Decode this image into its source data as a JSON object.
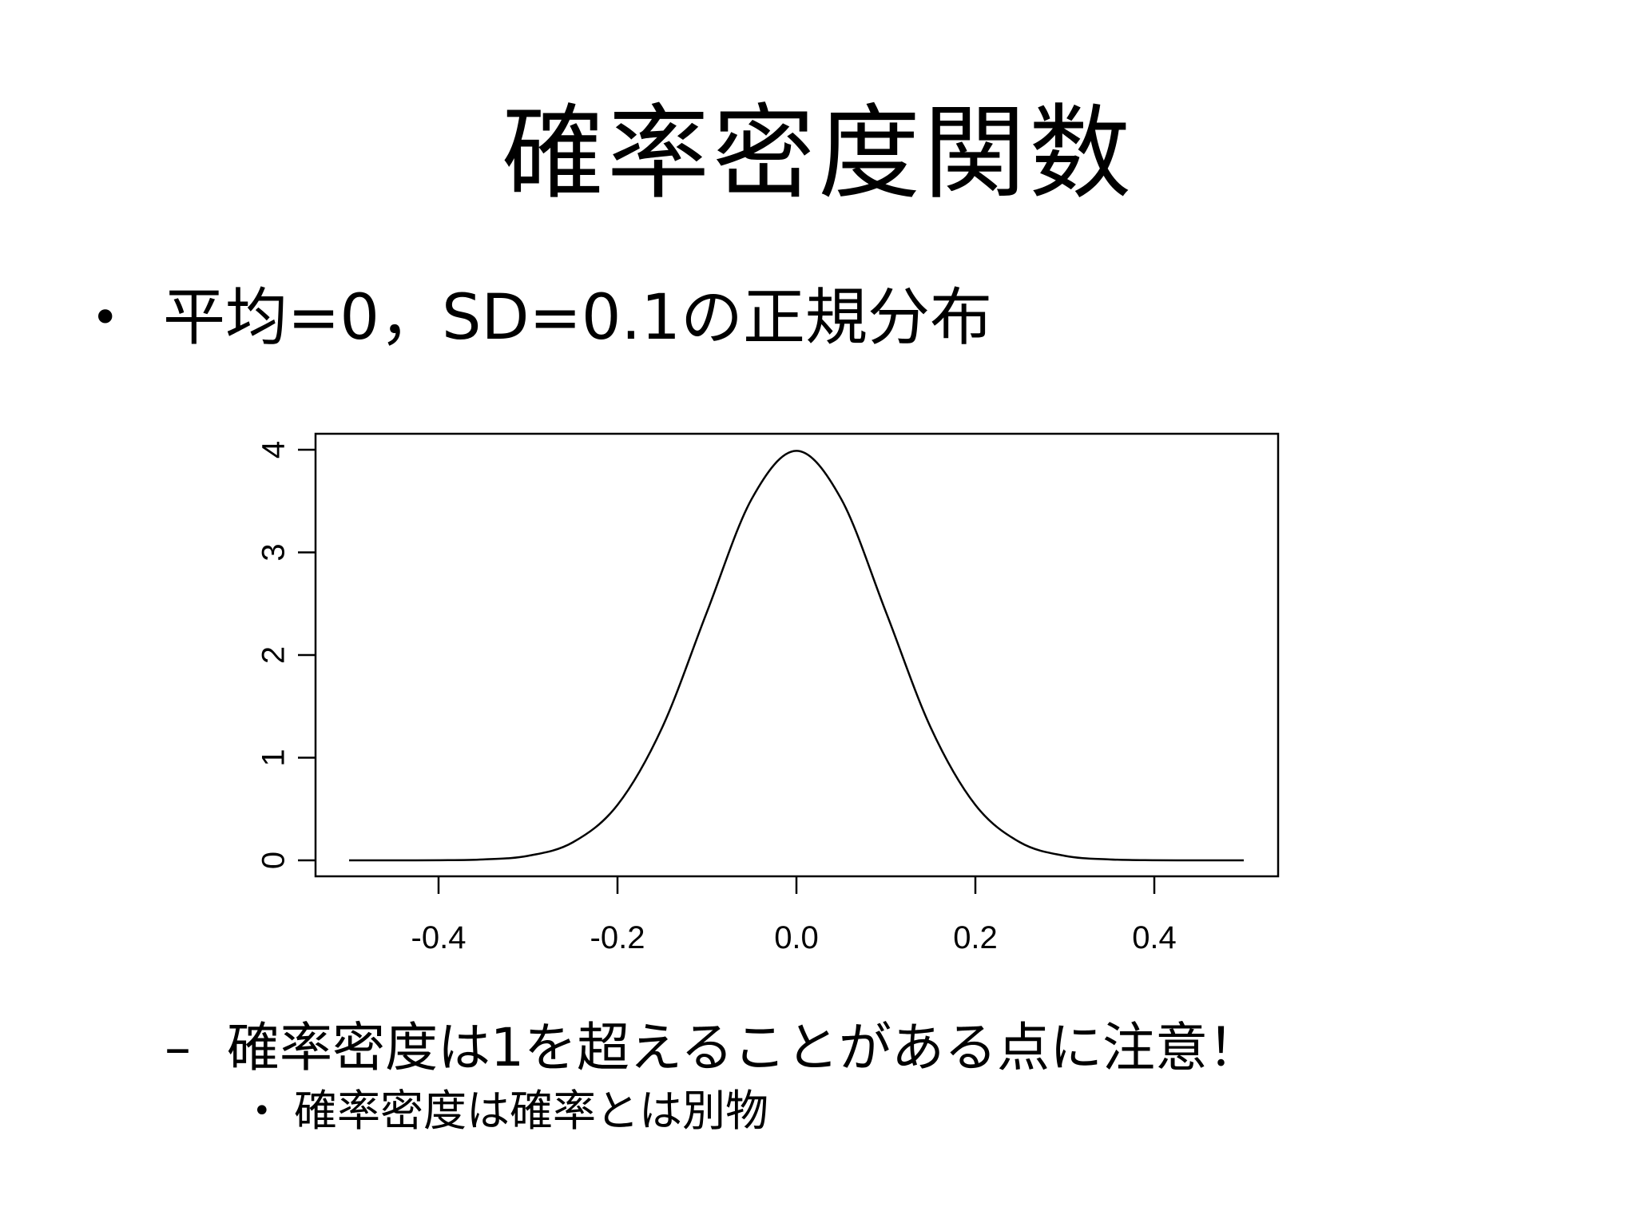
{
  "slide": {
    "title": "確率密度関数",
    "bullet1": {
      "marker": "•",
      "text": "平均=0，SD=0.1の正規分布"
    },
    "bullet2": {
      "marker": "–",
      "text": "確率密度は1を超えることがある点に注意！"
    },
    "bullet3": {
      "marker": "•",
      "text": "確率密度は確率とは別物"
    }
  },
  "chart_data": {
    "type": "line",
    "title": "",
    "xlabel": "",
    "ylabel": "",
    "xlim": [
      -0.5,
      0.5
    ],
    "ylim": [
      0,
      4
    ],
    "x_ticks": [
      -0.4,
      -0.2,
      0.0,
      0.2,
      0.4
    ],
    "x_tick_labels": [
      "-0.4",
      "-0.2",
      "0.0",
      "0.2",
      "0.4"
    ],
    "y_ticks": [
      0,
      1,
      2,
      3,
      4
    ],
    "y_tick_labels": [
      "0",
      "1",
      "2",
      "3",
      "4"
    ],
    "grid": false,
    "series": [
      {
        "distribution": "normal",
        "mean": 0,
        "sd": 0.1,
        "x": [
          -0.5,
          -0.45,
          -0.4,
          -0.35,
          -0.3,
          -0.25,
          -0.2,
          -0.15,
          -0.1,
          -0.05,
          0.0,
          0.05,
          0.1,
          0.15,
          0.2,
          0.25,
          0.3,
          0.35,
          0.4,
          0.45,
          0.5
        ],
        "y": [
          0.0,
          0.0,
          0.001,
          0.009,
          0.044,
          0.175,
          0.54,
          1.295,
          2.42,
          3.521,
          3.989,
          3.521,
          2.42,
          1.295,
          0.54,
          0.175,
          0.044,
          0.009,
          0.001,
          0.0,
          0.0
        ],
        "color": "#000000"
      }
    ]
  }
}
